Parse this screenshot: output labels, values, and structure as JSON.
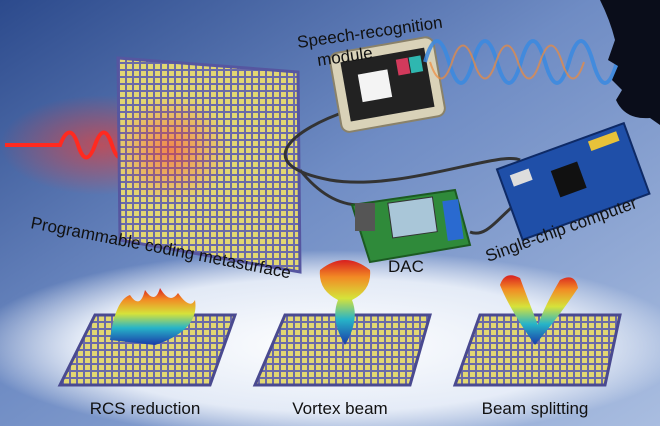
{
  "labels": {
    "speech_module": [
      "Speech-recognition",
      "module"
    ],
    "metasurface": "Programmable coding metasurface",
    "dac": "DAC",
    "computer": "Single-chip computer",
    "functions": [
      "RCS reduction",
      "Vortex beam",
      "Beam splitting"
    ]
  }
}
